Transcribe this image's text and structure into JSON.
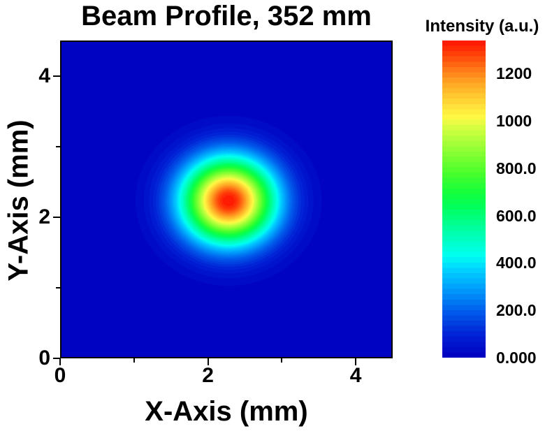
{
  "chart_data": {
    "type": "heatmap",
    "title": "Beam Profile, 352 mm",
    "xlabel": "X-Axis (mm)",
    "ylabel": "Y-Axis (mm)",
    "xlim": [
      0,
      4.5
    ],
    "ylim": [
      0,
      4.5
    ],
    "x_major_ticks": [
      0,
      2,
      4
    ],
    "x_minor_ticks": [
      1,
      3
    ],
    "y_major_ticks": [
      0,
      2,
      4
    ],
    "y_minor_ticks": [
      1,
      3
    ],
    "grid": false,
    "colorbar": {
      "title": "Intensity (a.u.)",
      "min": 0,
      "max": 1340,
      "levels": 60,
      "tick_values": [
        1200,
        1000,
        800,
        600,
        400,
        200,
        0
      ],
      "tick_labels": [
        "1200",
        "1000",
        "800.0",
        "600.0",
        "400.0",
        "200.0",
        "0.000"
      ],
      "position": "right"
    },
    "beam": {
      "profile": "gaussian",
      "center_x_mm": 2.28,
      "center_y_mm": 2.23,
      "sigma_x_mm": 0.44,
      "sigma_y_mm": 0.42,
      "peak_intensity": 1340,
      "background_intensity": 0
    },
    "colormap": [
      [
        0.0,
        "#0000C0"
      ],
      [
        0.07,
        "#0020D4"
      ],
      [
        0.15,
        "#0060EC"
      ],
      [
        0.22,
        "#00A0FC"
      ],
      [
        0.28,
        "#00D4FF"
      ],
      [
        0.32,
        "#00FFF0"
      ],
      [
        0.37,
        "#00FFC4"
      ],
      [
        0.42,
        "#00FF94"
      ],
      [
        0.47,
        "#00FF60"
      ],
      [
        0.52,
        "#14FF3C"
      ],
      [
        0.58,
        "#48FF2C"
      ],
      [
        0.65,
        "#8CFF34"
      ],
      [
        0.72,
        "#D0FF40"
      ],
      [
        0.76,
        "#FFF844"
      ],
      [
        0.8,
        "#FFDC38"
      ],
      [
        0.84,
        "#FFBC2C"
      ],
      [
        0.88,
        "#FF9820"
      ],
      [
        0.92,
        "#FF6C14"
      ],
      [
        0.96,
        "#FF3C08"
      ],
      [
        1.0,
        "#FF1400"
      ]
    ],
    "colors": {
      "plot_background": "#0000C0",
      "frame": "#000000",
      "page_background": "#FFFFFF",
      "text": "#000000"
    }
  }
}
